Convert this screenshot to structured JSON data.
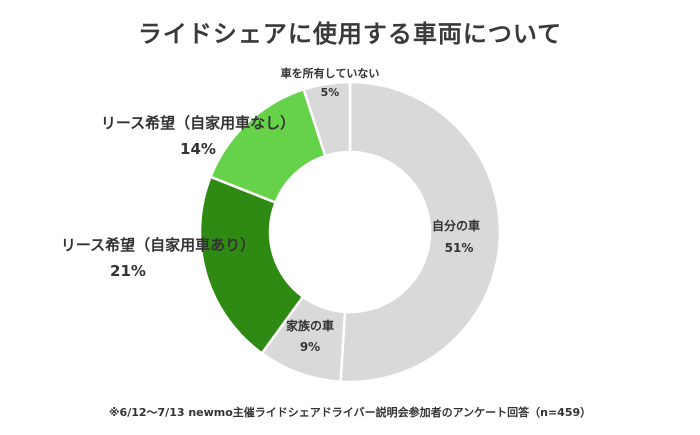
{
  "chart_data": {
    "type": "pie",
    "title": "ライドシェアに使用する車両について",
    "slices": [
      {
        "label": "自分の車",
        "value": 51,
        "display": "51%",
        "color": "#d9d9d9"
      },
      {
        "label": "家族の車",
        "value": 9,
        "display": "9%",
        "color": "#d9d9d9"
      },
      {
        "label": "リース希望（自家用車あり）",
        "value": 21,
        "display": "21%",
        "color": "#2e8a12"
      },
      {
        "label": "リース希望（自家用車なし）",
        "value": 14,
        "display": "14%",
        "color": "#66d24a"
      },
      {
        "label": "車を所有していない",
        "value": 5,
        "display": "5%",
        "color": "#d9d9d9"
      }
    ],
    "footnote": "※6/12〜7/13 newmo主催ライドシェアドライバー説明会参加者のアンケート回答（n=459）"
  }
}
